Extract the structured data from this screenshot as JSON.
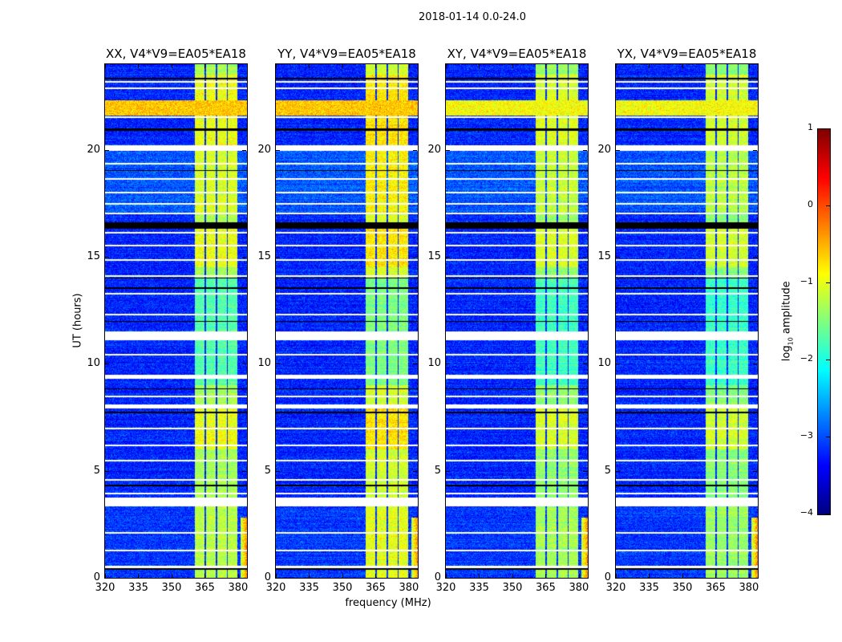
{
  "chart_data": {
    "type": "heatmap",
    "title": "2018-01-14 0.0-24.0",
    "xlabel": "frequency (MHz)",
    "ylabel": "UT (hours)",
    "xlim": [
      320,
      384
    ],
    "ylim": [
      0,
      24
    ],
    "xticks": [
      320,
      335,
      350,
      365,
      380
    ],
    "yticks": [
      0,
      5,
      10,
      15,
      20
    ],
    "colormap": "jet",
    "colorbar": {
      "label_prefix": "log",
      "label_sub": "10",
      "label_suffix": " amplitude",
      "range": [
        -4,
        1
      ],
      "ticks": [
        1,
        0,
        -1,
        -2,
        -3,
        -4
      ],
      "tick_labels": [
        "1",
        "0",
        "−1",
        "−2",
        "−3",
        "−4"
      ]
    },
    "panels": [
      {
        "title": "XX, V4*V9=EA05*EA18",
        "pol": "XX",
        "band_level": -1.3
      },
      {
        "title": "YY, V4*V9=EA05*EA18",
        "pol": "YY",
        "band_level": -1.1
      },
      {
        "title": "XY, V4*V9=EA05*EA18",
        "pol": "XY",
        "band_level": -1.4
      },
      {
        "title": "YX, V4*V9=EA05*EA18",
        "pol": "YX",
        "band_level": -1.45
      }
    ],
    "background_level": -3.2,
    "bright_channels_mhz": [
      [
        360.6,
        364.8
      ],
      [
        365.5,
        369.8
      ],
      [
        370.5,
        374.8
      ],
      [
        375.5,
        379.8
      ]
    ],
    "flagged_ut_hours": [
      [
        0.45,
        0.55
      ],
      [
        1.25,
        1.32
      ],
      [
        2.05,
        2.12
      ],
      [
        3.35,
        3.75
      ],
      [
        3.9,
        3.98
      ],
      [
        4.55,
        4.62
      ],
      [
        5.45,
        5.52
      ],
      [
        6.15,
        6.22
      ],
      [
        6.95,
        7.02
      ],
      [
        7.9,
        8.1
      ],
      [
        8.45,
        8.52
      ],
      [
        9.3,
        9.5
      ],
      [
        10.4,
        10.47
      ],
      [
        11.1,
        11.5
      ],
      [
        12.25,
        12.32
      ],
      [
        13.25,
        13.32
      ],
      [
        14.05,
        14.12
      ],
      [
        14.8,
        14.87
      ],
      [
        15.5,
        15.57
      ],
      [
        16.1,
        16.17
      ],
      [
        17.0,
        17.07
      ],
      [
        17.45,
        17.52
      ],
      [
        17.95,
        18.02
      ],
      [
        18.6,
        18.67
      ],
      [
        19.3,
        19.37
      ],
      [
        19.95,
        20.2
      ],
      [
        21.5,
        21.55
      ],
      [
        22.85,
        22.92
      ],
      [
        23.15,
        23.2
      ]
    ],
    "zero_ut_hours": [
      [
        0.38,
        0.44
      ],
      [
        4.28,
        4.34
      ],
      [
        7.7,
        7.78
      ],
      [
        8.8,
        8.86
      ],
      [
        11.95,
        12.0
      ],
      [
        13.5,
        13.56
      ],
      [
        14.0,
        14.04
      ],
      [
        16.3,
        16.6
      ],
      [
        19.0,
        19.06
      ],
      [
        20.9,
        21.0
      ],
      [
        23.3,
        23.36
      ]
    ],
    "rfi_ut_hours": [
      [
        21.6,
        22.3
      ]
    ],
    "edge_rfi": {
      "freq_mhz": [
        381,
        384
      ],
      "ut_hours": [
        0,
        2.8
      ]
    }
  }
}
